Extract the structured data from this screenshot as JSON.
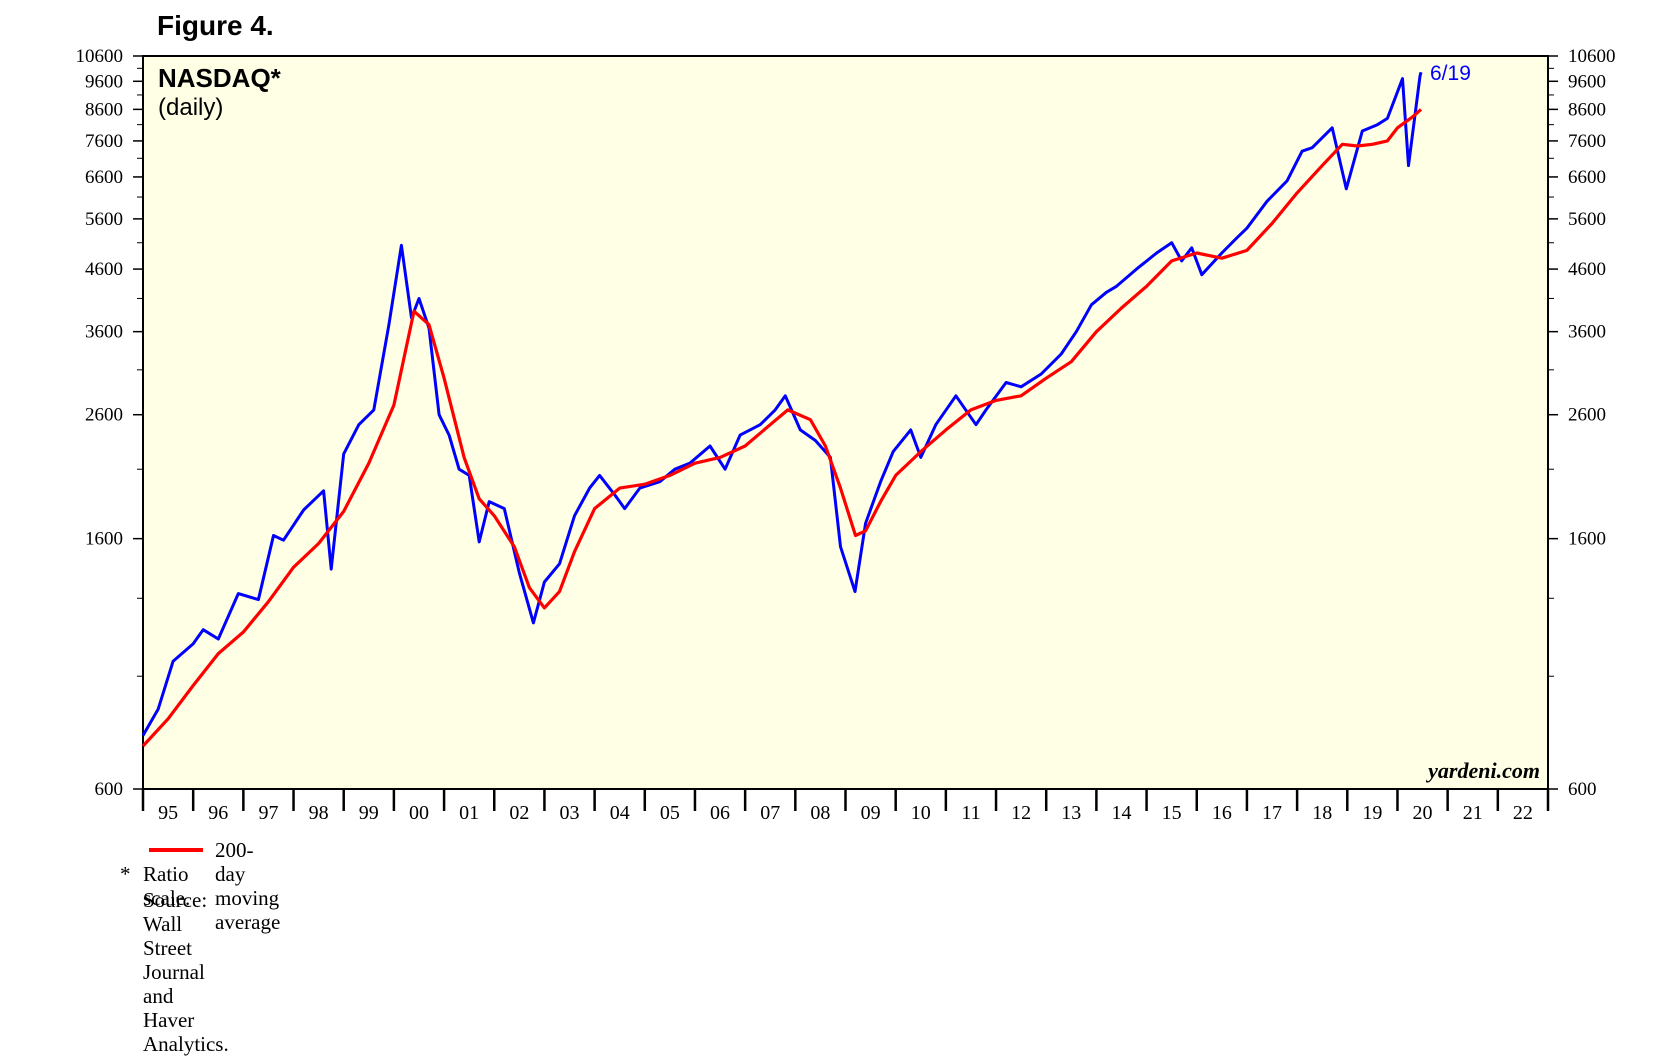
{
  "figure_label": "Figure 4.",
  "footer": {
    "legend_label": "200-day moving average",
    "note_star": "*",
    "note_text": "Ratio scale.",
    "source": "Source: Wall Street Journal and Haver Analytics."
  },
  "chart_data": {
    "type": "line",
    "title": "NASDAQ*",
    "subtitle": "(daily)",
    "watermark": "yardeni.com",
    "last_label": "6/19",
    "y_scale": "log",
    "ylim": [
      600,
      10600
    ],
    "y_ticks": [
      600,
      1600,
      2600,
      3600,
      4600,
      5600,
      6600,
      7600,
      8600,
      9600,
      10600
    ],
    "y_tick_labels": [
      "600",
      "1600",
      "2600",
      "3600",
      "4600",
      "5600",
      "6600",
      "7600",
      "8600",
      "9600",
      "10600"
    ],
    "xlim": [
      1995.0,
      2023.0
    ],
    "x_tick_labels": [
      "95",
      "96",
      "97",
      "98",
      "99",
      "00",
      "01",
      "02",
      "03",
      "04",
      "05",
      "06",
      "07",
      "08",
      "09",
      "10",
      "11",
      "12",
      "13",
      "14",
      "15",
      "16",
      "17",
      "18",
      "19",
      "20",
      "21",
      "22"
    ],
    "grid": false,
    "background": "#ffffe5",
    "series": [
      {
        "name": "NASDAQ",
        "color": "#0000ff",
        "x": [
          1995.0,
          1995.3,
          1995.6,
          1996.0,
          1996.2,
          1996.5,
          1996.9,
          1997.3,
          1997.6,
          1997.8,
          1998.2,
          1998.6,
          1998.75,
          1999.0,
          1999.3,
          1999.6,
          1999.9,
          2000.15,
          2000.35,
          2000.5,
          2000.7,
          2000.9,
          2001.1,
          2001.3,
          2001.5,
          2001.7,
          2001.9,
          2002.2,
          2002.5,
          2002.78,
          2003.0,
          2003.3,
          2003.6,
          2003.9,
          2004.1,
          2004.4,
          2004.6,
          2004.9,
          2005.3,
          2005.6,
          2005.9,
          2006.3,
          2006.6,
          2006.9,
          2007.3,
          2007.6,
          2007.8,
          2008.1,
          2008.4,
          2008.7,
          2008.9,
          2009.19,
          2009.4,
          2009.7,
          2009.95,
          2010.3,
          2010.5,
          2010.8,
          2011.2,
          2011.6,
          2011.8,
          2012.2,
          2012.5,
          2012.9,
          2013.3,
          2013.6,
          2013.9,
          2014.2,
          2014.4,
          2014.8,
          2015.2,
          2015.5,
          2015.7,
          2015.9,
          2016.1,
          2016.5,
          2016.8,
          2017.0,
          2017.4,
          2017.8,
          2018.1,
          2018.3,
          2018.7,
          2018.98,
          2019.3,
          2019.6,
          2019.8,
          2020.1,
          2020.22,
          2020.45,
          2020.47
        ],
        "y": [
          740,
          820,
          990,
          1060,
          1120,
          1080,
          1290,
          1260,
          1620,
          1590,
          1790,
          1930,
          1420,
          2230,
          2500,
          2650,
          3700,
          5050,
          3800,
          4100,
          3650,
          2600,
          2400,
          2100,
          2050,
          1580,
          1850,
          1800,
          1400,
          1150,
          1350,
          1450,
          1750,
          1950,
          2050,
          1900,
          1800,
          1950,
          2000,
          2100,
          2150,
          2300,
          2100,
          2400,
          2500,
          2650,
          2800,
          2450,
          2350,
          2200,
          1550,
          1300,
          1700,
          2000,
          2250,
          2450,
          2200,
          2500,
          2800,
          2500,
          2650,
          2950,
          2900,
          3050,
          3300,
          3600,
          4000,
          4200,
          4300,
          4600,
          4900,
          5100,
          4750,
          5000,
          4500,
          4900,
          5200,
          5400,
          6000,
          6500,
          7300,
          7400,
          8000,
          6300,
          7900,
          8100,
          8300,
          9700,
          6900,
          9800,
          9950
        ]
      },
      {
        "name": "200-day moving average",
        "color": "#ff0000",
        "x": [
          1995.0,
          1995.5,
          1996.0,
          1996.5,
          1997.0,
          1997.5,
          1998.0,
          1998.5,
          1999.0,
          1999.5,
          2000.0,
          2000.4,
          2000.7,
          2001.0,
          2001.4,
          2001.7,
          2002.0,
          2002.4,
          2002.7,
          2003.0,
          2003.3,
          2003.6,
          2004.0,
          2004.5,
          2005.0,
          2005.5,
          2006.0,
          2006.5,
          2007.0,
          2007.5,
          2007.85,
          2008.3,
          2008.6,
          2008.9,
          2009.2,
          2009.4,
          2009.7,
          2010.0,
          2010.5,
          2011.0,
          2011.5,
          2012.0,
          2012.5,
          2013.0,
          2013.5,
          2014.0,
          2014.5,
          2015.0,
          2015.5,
          2016.0,
          2016.5,
          2017.0,
          2017.5,
          2018.0,
          2018.5,
          2018.9,
          2019.2,
          2019.5,
          2019.8,
          2020.0,
          2020.3,
          2020.47
        ],
        "y": [
          710,
          790,
          900,
          1020,
          1110,
          1250,
          1430,
          1570,
          1780,
          2150,
          2700,
          3900,
          3700,
          3000,
          2200,
          1870,
          1750,
          1550,
          1320,
          1220,
          1300,
          1520,
          1800,
          1950,
          1980,
          2050,
          2150,
          2200,
          2300,
          2500,
          2650,
          2550,
          2300,
          1950,
          1620,
          1650,
          1850,
          2050,
          2250,
          2450,
          2650,
          2750,
          2800,
          3000,
          3200,
          3600,
          3950,
          4300,
          4750,
          4900,
          4800,
          4950,
          5500,
          6200,
          6900,
          7500,
          7450,
          7500,
          7600,
          8000,
          8350,
          8600
        ]
      }
    ]
  }
}
